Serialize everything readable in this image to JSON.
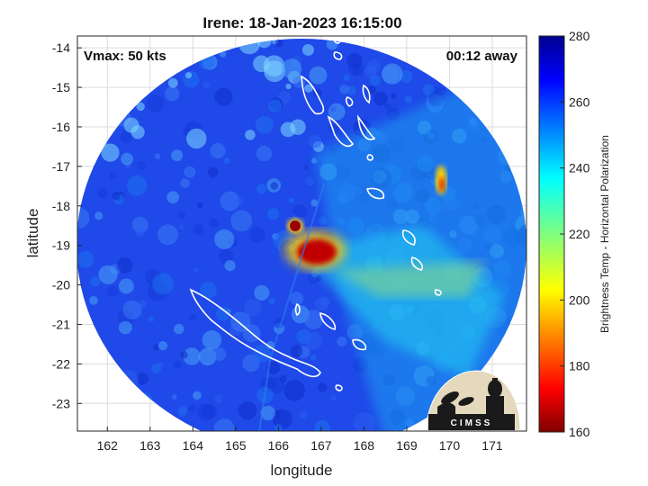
{
  "chart_data": {
    "type": "heatmap",
    "title": "Irene: 18-Jan-2023 16:15:00",
    "xlabel": "longitude",
    "ylabel": "latitude",
    "xlim": [
      161.3,
      171.8
    ],
    "ylim": [
      -23.7,
      -13.7
    ],
    "x_ticks": [
      162,
      163,
      164,
      165,
      166,
      167,
      168,
      169,
      170,
      171
    ],
    "y_ticks": [
      -14,
      -15,
      -16,
      -17,
      -18,
      -19,
      -20,
      -21,
      -22,
      -23
    ],
    "grid": true,
    "annotations": {
      "vmax": "Vmax: 50 kts",
      "away": "00:12 away"
    },
    "colorbar": {
      "label": "Brightness Temp - Horizontal Polarization",
      "min": 160,
      "max": 280,
      "ticks": [
        160,
        180,
        200,
        220,
        240,
        260,
        280
      ],
      "colormap": "jet"
    },
    "storm_center": {
      "lon": 166.8,
      "lat": -19.2,
      "min_temp": 165
    },
    "background_temp": 255,
    "swath": {
      "center_lon": 166.55,
      "center_lat": -18.7,
      "radius_deg": 5.0
    },
    "logo": "CIMSS"
  }
}
